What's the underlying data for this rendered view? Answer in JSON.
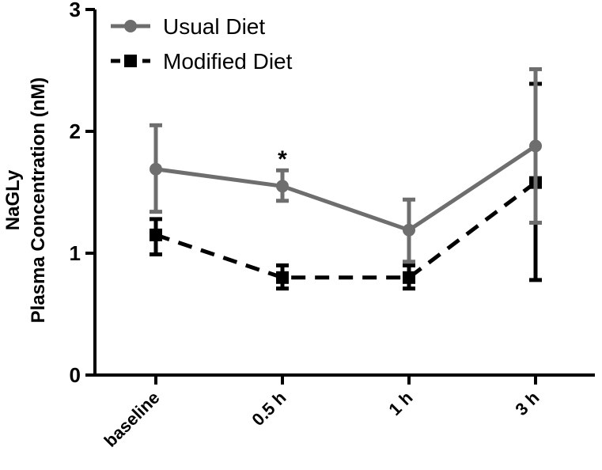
{
  "chart_data": {
    "type": "line",
    "title": "",
    "xlabel": "",
    "ylabel_lines": [
      "NaGLy",
      "Plasma Concentration (nM)"
    ],
    "ylim": [
      0,
      3
    ],
    "yticks": [
      "0",
      "1",
      "2",
      "3"
    ],
    "categories": [
      "baseline",
      "0.5 h",
      "1 h",
      "3 h"
    ],
    "legend_position": "top-left",
    "grid": false,
    "series": [
      {
        "name": "Usual Diet",
        "color": "#6e6e6e",
        "line_style": "solid",
        "marker": "circle",
        "values": [
          1.69,
          1.55,
          1.19,
          1.88
        ],
        "error_upper": [
          2.05,
          1.68,
          1.44,
          2.51
        ],
        "error_lower": [
          1.34,
          1.43,
          0.93,
          1.25
        ]
      },
      {
        "name": "Modified Diet",
        "color": "#000000",
        "line_style": "dashed",
        "marker": "square",
        "values": [
          1.15,
          0.8,
          0.8,
          1.58
        ],
        "error_upper": [
          1.28,
          0.9,
          0.9,
          2.39
        ],
        "error_lower": [
          0.99,
          0.71,
          0.71,
          0.78
        ]
      }
    ],
    "annotations": [
      {
        "text": "*",
        "category": "0.5 h",
        "y": 1.8
      }
    ]
  }
}
